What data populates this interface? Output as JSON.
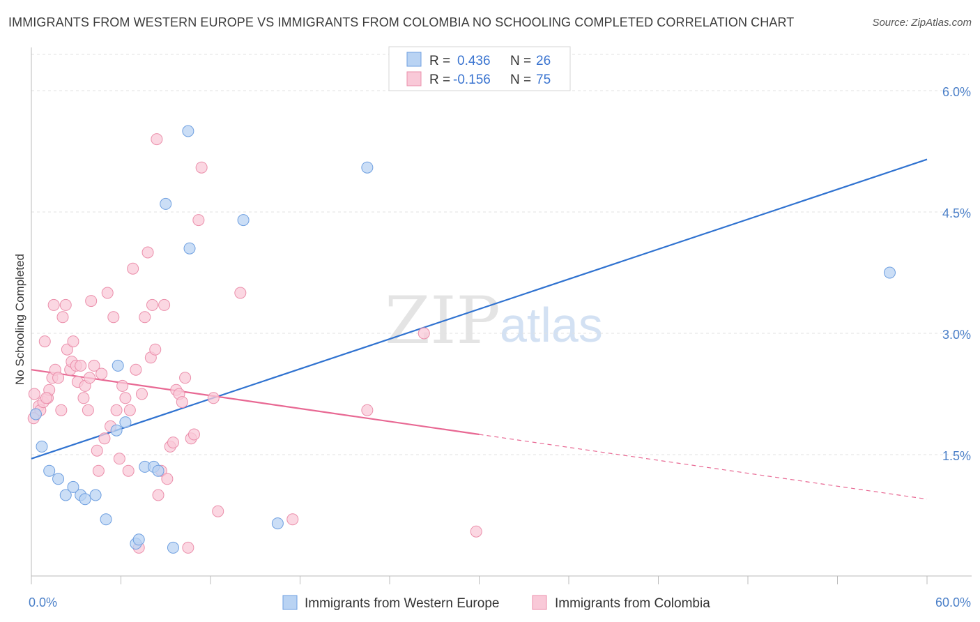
{
  "title": "IMMIGRANTS FROM WESTERN EUROPE VS IMMIGRANTS FROM COLOMBIA NO SCHOOLING COMPLETED CORRELATION CHART",
  "source": "Source: ZipAtlas.com",
  "watermark": {
    "zip": "ZIP",
    "atlas": "atlas"
  },
  "legend": {
    "r_label": "R =",
    "n_label": "N =",
    "rows": [
      {
        "r": "0.436",
        "n": "26",
        "color": "#a9c8f0"
      },
      {
        "r": "-0.156",
        "n": "75",
        "color": "#f8bfd0"
      }
    ]
  },
  "colors": {
    "blue_point_fill": "#b9d3f3",
    "blue_point_stroke": "#6e9fe0",
    "blue_line": "#2f72d0",
    "pink_point_fill": "#f9c9d8",
    "pink_point_stroke": "#eb8fab",
    "pink_line": "#e86893",
    "grid": "#e2e2e2",
    "axis": "#bbbbbb",
    "tick_text": "#4a7fc8"
  },
  "chart_data": {
    "type": "scatter",
    "title": "IMMIGRANTS FROM WESTERN EUROPE VS IMMIGRANTS FROM COLOMBIA NO SCHOOLING COMPLETED CORRELATION CHART",
    "xlabel": "",
    "ylabel": "No Schooling Completed",
    "xlim": [
      0,
      60
    ],
    "ylim": [
      0,
      6.5
    ],
    "x_tick_labels": [
      "0.0%",
      "60.0%"
    ],
    "y_ticks": [
      1.5,
      3.0,
      4.5,
      6.0
    ],
    "y_tick_labels": [
      "1.5%",
      "3.0%",
      "4.5%",
      "6.0%"
    ],
    "grid": true,
    "legend_position": "top-center",
    "series": [
      {
        "name": "Immigrants from Western Europe",
        "r": 0.436,
        "n": 26,
        "points": [
          [
            0.3,
            2.0
          ],
          [
            0.7,
            1.6
          ],
          [
            1.2,
            1.3
          ],
          [
            1.8,
            1.2
          ],
          [
            2.3,
            1.0
          ],
          [
            2.8,
            1.1
          ],
          [
            3.3,
            1.0
          ],
          [
            3.6,
            0.95
          ],
          [
            4.3,
            1.0
          ],
          [
            5.0,
            0.7
          ],
          [
            5.7,
            1.8
          ],
          [
            5.8,
            2.6
          ],
          [
            6.3,
            1.9
          ],
          [
            7.0,
            0.4
          ],
          [
            7.2,
            0.45
          ],
          [
            7.6,
            1.35
          ],
          [
            8.2,
            1.35
          ],
          [
            8.5,
            1.3
          ],
          [
            9.0,
            4.6
          ],
          [
            9.5,
            0.35
          ],
          [
            10.5,
            5.5
          ],
          [
            10.6,
            4.05
          ],
          [
            14.2,
            4.4
          ],
          [
            16.5,
            0.65
          ],
          [
            22.5,
            5.05
          ],
          [
            57.5,
            3.75
          ]
        ],
        "trend": {
          "x": [
            0,
            60
          ],
          "y": [
            1.45,
            5.15
          ]
        }
      },
      {
        "name": "Immigrants from Colombia",
        "r": -0.156,
        "n": 75,
        "points": [
          [
            0.2,
            2.25
          ],
          [
            0.3,
            2.0
          ],
          [
            0.5,
            2.1
          ],
          [
            0.6,
            2.05
          ],
          [
            0.8,
            2.15
          ],
          [
            0.9,
            2.9
          ],
          [
            1.1,
            2.2
          ],
          [
            1.2,
            2.3
          ],
          [
            1.4,
            2.45
          ],
          [
            1.5,
            3.35
          ],
          [
            1.6,
            2.55
          ],
          [
            1.8,
            2.45
          ],
          [
            2.0,
            2.05
          ],
          [
            2.1,
            3.2
          ],
          [
            2.3,
            3.35
          ],
          [
            2.4,
            2.8
          ],
          [
            2.6,
            2.55
          ],
          [
            2.7,
            2.65
          ],
          [
            2.8,
            2.9
          ],
          [
            3.0,
            2.6
          ],
          [
            3.1,
            2.4
          ],
          [
            3.3,
            2.6
          ],
          [
            3.5,
            2.2
          ],
          [
            3.6,
            2.35
          ],
          [
            3.8,
            2.05
          ],
          [
            3.9,
            2.45
          ],
          [
            4.0,
            3.4
          ],
          [
            4.2,
            2.6
          ],
          [
            4.4,
            1.55
          ],
          [
            4.5,
            1.3
          ],
          [
            4.7,
            2.5
          ],
          [
            4.9,
            1.7
          ],
          [
            5.1,
            3.5
          ],
          [
            5.3,
            1.85
          ],
          [
            5.5,
            3.2
          ],
          [
            5.7,
            2.05
          ],
          [
            5.9,
            1.45
          ],
          [
            6.1,
            2.35
          ],
          [
            6.3,
            2.2
          ],
          [
            6.5,
            1.3
          ],
          [
            6.6,
            2.05
          ],
          [
            6.8,
            3.8
          ],
          [
            7.0,
            2.55
          ],
          [
            7.2,
            0.35
          ],
          [
            7.4,
            2.25
          ],
          [
            7.6,
            3.2
          ],
          [
            7.8,
            4.0
          ],
          [
            8.0,
            2.7
          ],
          [
            8.1,
            3.35
          ],
          [
            8.3,
            2.8
          ],
          [
            8.4,
            5.4
          ],
          [
            8.5,
            1.0
          ],
          [
            8.7,
            1.3
          ],
          [
            8.9,
            3.35
          ],
          [
            9.1,
            1.2
          ],
          [
            9.3,
            1.6
          ],
          [
            9.5,
            1.65
          ],
          [
            9.7,
            2.3
          ],
          [
            9.9,
            2.25
          ],
          [
            10.1,
            2.15
          ],
          [
            10.3,
            2.45
          ],
          [
            10.5,
            0.35
          ],
          [
            10.7,
            1.7
          ],
          [
            10.9,
            1.75
          ],
          [
            11.2,
            4.4
          ],
          [
            11.4,
            5.05
          ],
          [
            12.2,
            2.2
          ],
          [
            12.5,
            0.8
          ],
          [
            14.0,
            3.5
          ],
          [
            17.5,
            0.7
          ],
          [
            22.5,
            2.05
          ],
          [
            26.3,
            3.0
          ],
          [
            29.8,
            0.55
          ],
          [
            0.15,
            1.95
          ],
          [
            1.0,
            2.2
          ]
        ],
        "trend_solid": {
          "x": [
            0,
            30
          ],
          "y": [
            2.55,
            1.75
          ]
        },
        "trend_dashed": {
          "x": [
            30,
            60
          ],
          "y": [
            1.75,
            0.95
          ]
        }
      }
    ]
  }
}
